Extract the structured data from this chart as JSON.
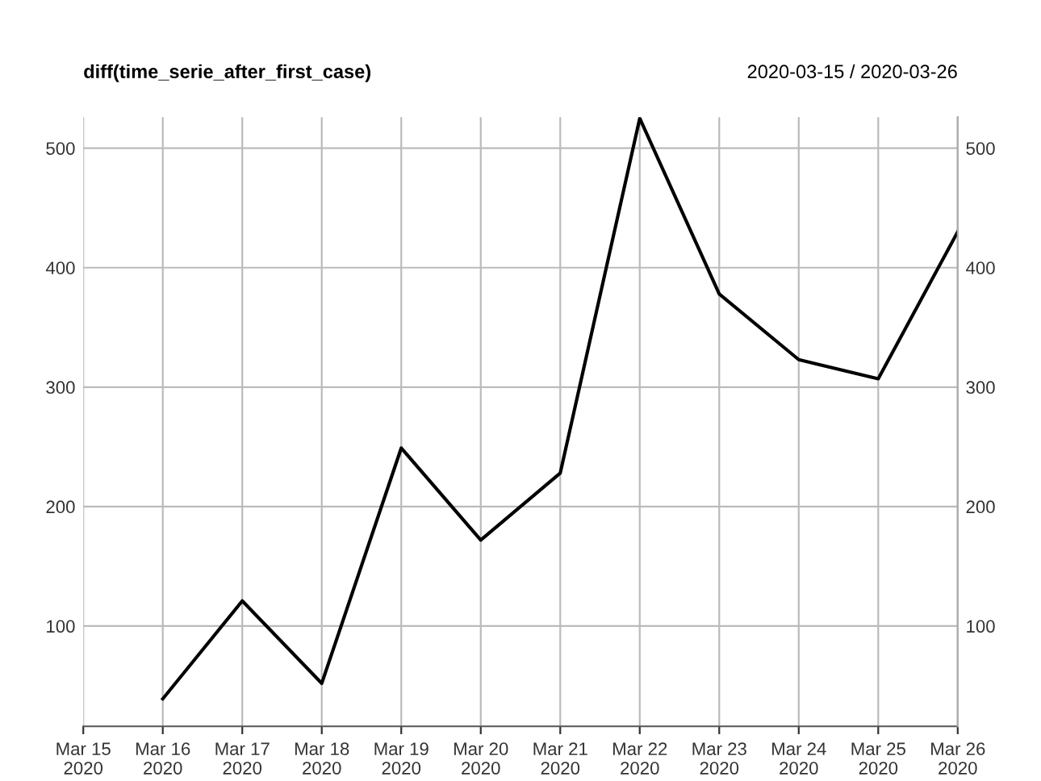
{
  "chart_data": {
    "type": "line",
    "title": "diff(time_serie_after_first_case)",
    "subtitle": "2020-03-15 / 2020-03-26",
    "x": [
      "2020-03-16",
      "2020-03-17",
      "2020-03-18",
      "2020-03-19",
      "2020-03-20",
      "2020-03-21",
      "2020-03-22",
      "2020-03-23",
      "2020-03-24",
      "2020-03-25",
      "2020-03-26"
    ],
    "series": [
      {
        "color": "#000000",
        "values": [
          39,
          121,
          52,
          249,
          172,
          228,
          525,
          378,
          323,
          307,
          430
        ]
      }
    ],
    "xlim": [
      "2020-03-15",
      "2020-03-26"
    ],
    "xticks": [
      {
        "value": "2020-03-15",
        "label": "Mar 15\n2020"
      },
      {
        "value": "2020-03-16",
        "label": "Mar 16\n2020"
      },
      {
        "value": "2020-03-17",
        "label": "Mar 17\n2020"
      },
      {
        "value": "2020-03-18",
        "label": "Mar 18\n2020"
      },
      {
        "value": "2020-03-19",
        "label": "Mar 19\n2020"
      },
      {
        "value": "2020-03-20",
        "label": "Mar 20\n2020"
      },
      {
        "value": "2020-03-21",
        "label": "Mar 21\n2020"
      },
      {
        "value": "2020-03-22",
        "label": "Mar 22\n2020"
      },
      {
        "value": "2020-03-23",
        "label": "Mar 23\n2020"
      },
      {
        "value": "2020-03-24",
        "label": "Mar 24\n2020"
      },
      {
        "value": "2020-03-25",
        "label": "Mar 25\n2020"
      },
      {
        "value": "2020-03-26",
        "label": "Mar 26\n2020"
      }
    ],
    "ylim": [
      16,
      526
    ],
    "yticks": [
      100,
      200,
      300,
      400,
      500
    ],
    "y2lim": [
      16,
      526
    ],
    "y2ticks": [
      100,
      200,
      300,
      400,
      500
    ],
    "grid": true,
    "line_style": "solid",
    "marker": "none"
  }
}
